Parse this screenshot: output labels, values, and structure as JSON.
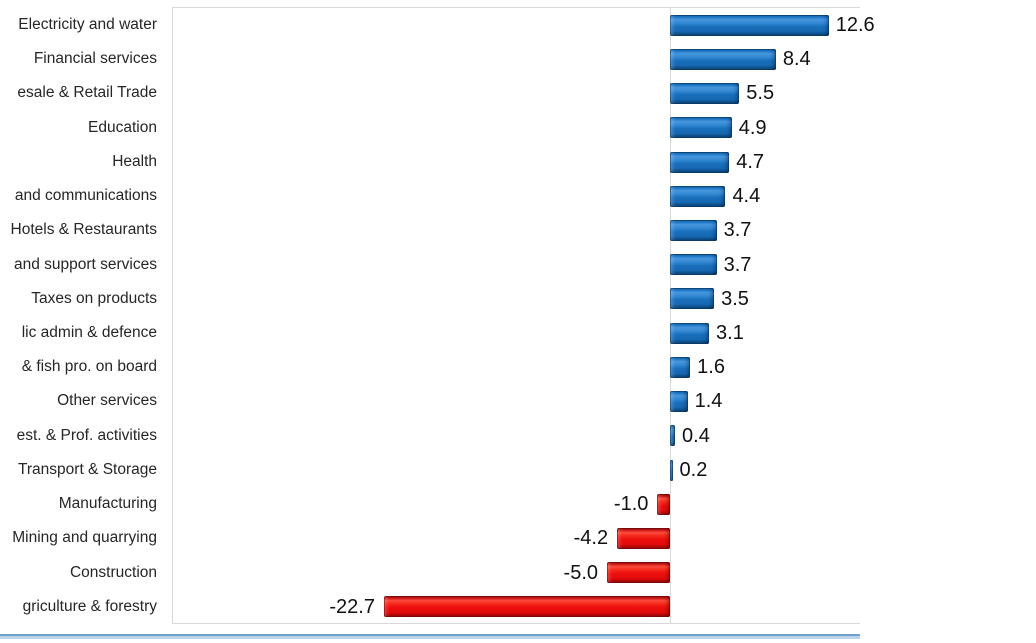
{
  "chart_data": {
    "type": "bar",
    "orientation": "horizontal",
    "title": "",
    "xlabel": "",
    "ylabel": "",
    "legend": "none",
    "gridlines": false,
    "zero_axis_line": true,
    "categories": [
      "Electricity and water",
      "Financial services",
      "esale & Retail Trade",
      "Education",
      "Health",
      "and communications",
      "Hotels & Restaurants",
      "and support services",
      "Taxes on products",
      "lic admin & defence",
      "& fish pro. on board",
      "Other services",
      "est. & Prof. activities",
      "Transport & Storage",
      "Manufacturing",
      "Mining and quarrying",
      "Construction",
      "griculture & forestry"
    ],
    "values": [
      12.6,
      8.4,
      5.5,
      4.9,
      4.7,
      4.4,
      3.7,
      3.7,
      3.5,
      3.1,
      1.6,
      1.4,
      0.4,
      0.2,
      -1.0,
      -4.2,
      -5.0,
      -22.7
    ],
    "value_labels": [
      "12.6",
      "8.4",
      "5.5",
      "4.9",
      "4.7",
      "4.4",
      "3.7",
      "3.7",
      "3.5",
      "3.1",
      "1.6",
      "1.4",
      "0.4",
      "0.2",
      "-1.0",
      "-4.2",
      "-5.0",
      "-22.7"
    ],
    "xlim": [
      -24,
      15
    ]
  },
  "colors": {
    "positive_bar": "#1B6FBC",
    "negative_bar": "#EC0D0D",
    "plot_border": "#D9D9D9",
    "zero_line": "#D9D9D9",
    "category_label": "#262626",
    "value_label": "#111111",
    "bottom_rule_dark": "#6FA0CC",
    "bottom_rule_light": "#BCD4E9",
    "background": "#FFFFFF"
  }
}
